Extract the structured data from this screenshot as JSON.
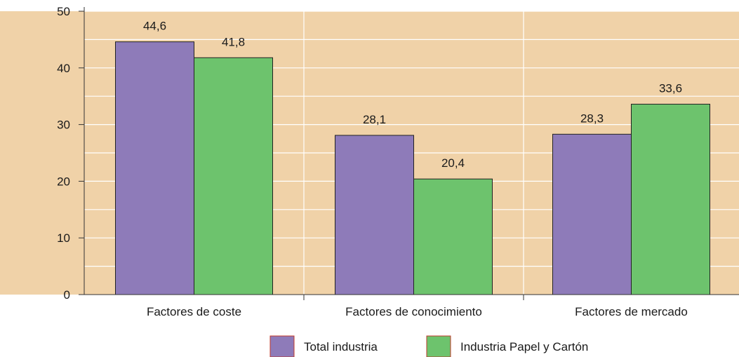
{
  "chart_data": {
    "type": "bar",
    "categories": [
      "Factores de coste",
      "Factores de conocimiento",
      "Factores de mercado"
    ],
    "series": [
      {
        "name": "Total industria",
        "values": [
          44.6,
          28.1,
          28.3
        ],
        "labels": [
          "44,6",
          "28,1",
          "28,3"
        ],
        "color": "#8e7bb9"
      },
      {
        "name": "Industria Papel y Cartón",
        "values": [
          41.8,
          20.4,
          33.6
        ],
        "labels": [
          "41,8",
          "20,4",
          "33,6"
        ],
        "color": "#6dc36d"
      }
    ],
    "ylim": [
      0,
      50
    ],
    "yticks": [
      0,
      10,
      20,
      30,
      40,
      50
    ],
    "ytick_labels": [
      "0",
      "10",
      "20",
      "30",
      "40",
      "50"
    ],
    "grid": true,
    "legend_position": "bottom",
    "colors": {
      "plot_background": "#f0d2a8",
      "gridline": "#ffffff",
      "bar_border": "#222222",
      "legend_swatch_border": "#c0392b"
    }
  }
}
